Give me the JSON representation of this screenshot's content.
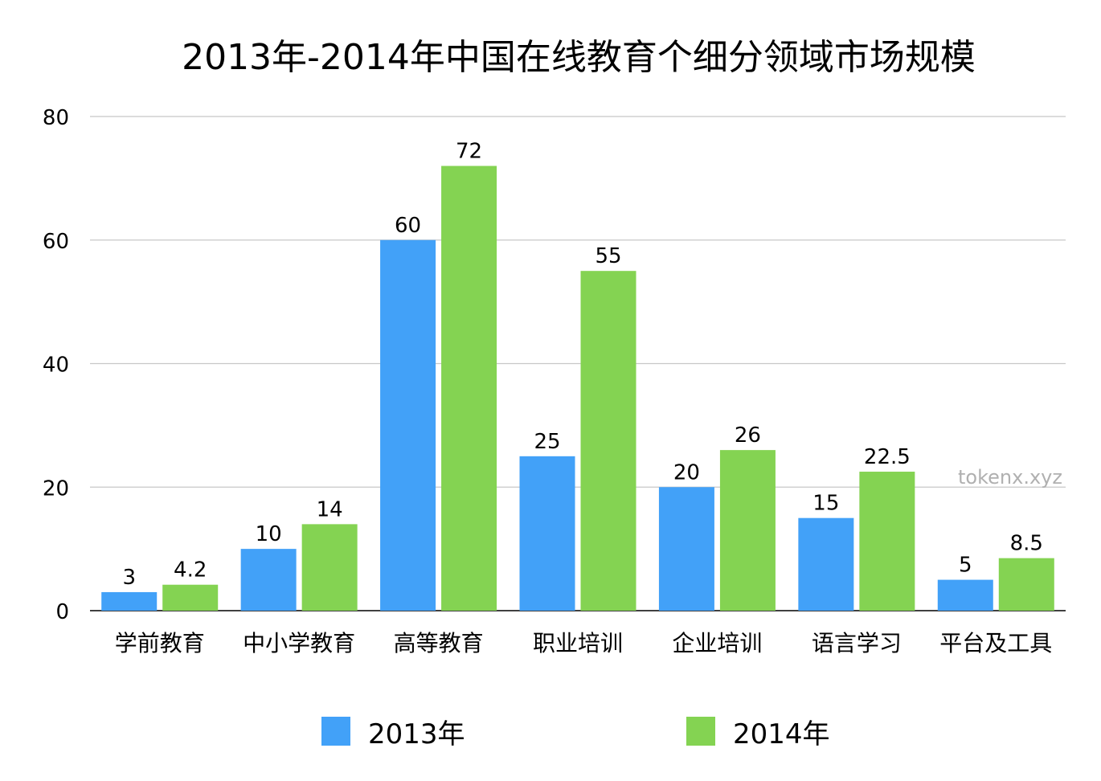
{
  "watermark": "tokenx.xyz",
  "chart_data": {
    "type": "bar",
    "title": "2013年-2014年中国在线教育个细分领域市场规模",
    "xlabel": "",
    "ylabel": "",
    "categories": [
      "学前教育",
      "中小学教育",
      "高等教育",
      "职业培训",
      "企业培训",
      "语言学习",
      "平台及工具"
    ],
    "series": [
      {
        "name": "2013年",
        "color": "#42a1f8",
        "values": [
          3,
          10,
          60,
          25,
          20,
          15,
          5
        ]
      },
      {
        "name": "2014年",
        "color": "#84d352",
        "values": [
          4.2,
          14,
          72,
          55,
          26,
          22.5,
          8.5
        ]
      }
    ],
    "ylim": [
      0,
      80
    ],
    "yticks": [
      0,
      20,
      40,
      60,
      80
    ],
    "grid": true,
    "legend_position": "bottom"
  }
}
